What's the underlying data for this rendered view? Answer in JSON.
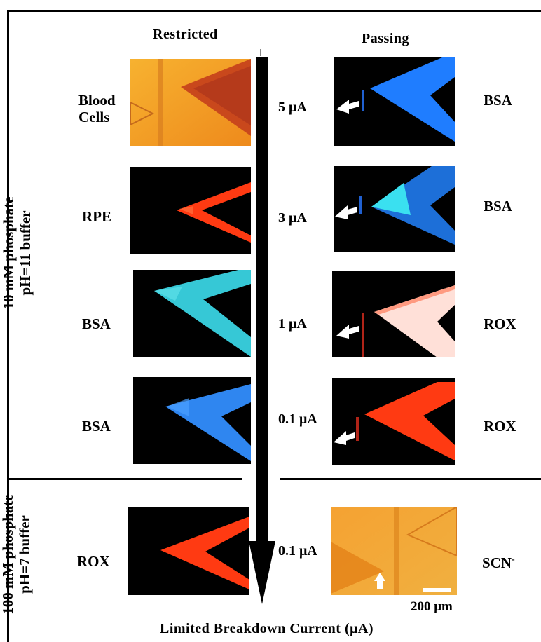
{
  "headers": {
    "left": "Restricted",
    "right": "Passing"
  },
  "side_labels": {
    "top_buffer_line1": "10 mM phosphate",
    "top_buffer_line2": "pH=11 buffer",
    "bottom_buffer_line1": "100 mM phosphate",
    "bottom_buffer_line2": "pH=7 buffer"
  },
  "rows": [
    {
      "left_label_line1": "Blood",
      "left_label_line2": "Cells",
      "current": "5 μA",
      "right_label": "BSA"
    },
    {
      "left_label_line1": "RPE",
      "left_label_line2": "",
      "current": "3 μA",
      "right_label": "BSA"
    },
    {
      "left_label_line1": "BSA",
      "left_label_line2": "",
      "current": "1 μA",
      "right_label": "ROX"
    },
    {
      "left_label_line1": "BSA",
      "left_label_line2": "",
      "current": "0.1 μA",
      "right_label": "ROX"
    },
    {
      "left_label_line1": "ROX",
      "left_label_line2": "",
      "current": "0.1 μA",
      "right_label": "SCN",
      "right_label_sup": "-"
    }
  ],
  "scale_bar": "200 μm",
  "axis_label": "Limited Breakdown Current (μA)",
  "colors": {
    "blood_orange": "#f2a22a",
    "blue_bright": "#1f7dff",
    "cyan": "#36c8e0",
    "red_orange": "#ff3a12",
    "pink_white": "#ffd8d0"
  }
}
